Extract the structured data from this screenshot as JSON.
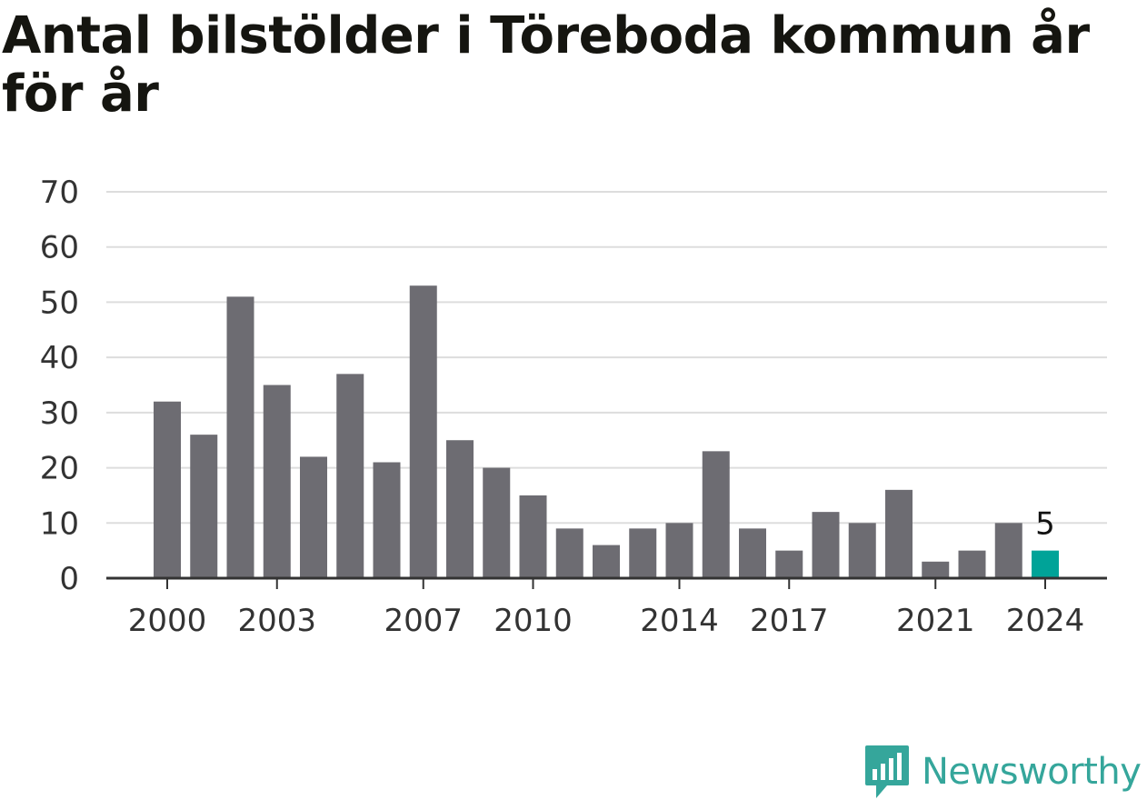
{
  "title": "Antal bilstölder i Töreboda kommun år för år",
  "brand": {
    "name": "Newsworthy",
    "icon": "newsworthy-logo-icon",
    "color": "#35a69b"
  },
  "colors": {
    "bar": "#6d6c72",
    "highlight": "#00a398",
    "grid": "#dddddd",
    "axis": "#333333",
    "text": "#333333"
  },
  "chart_data": {
    "type": "bar",
    "title": "Antal bilstölder i Töreboda kommun år för år",
    "xlabel": "",
    "ylabel": "",
    "categories": [
      "2000",
      "2001",
      "2002",
      "2003",
      "2004",
      "2005",
      "2006",
      "2007",
      "2008",
      "2009",
      "2010",
      "2011",
      "2012",
      "2013",
      "2014",
      "2015",
      "2016",
      "2017",
      "2018",
      "2019",
      "2020",
      "2021",
      "2022",
      "2023",
      "2024"
    ],
    "values": [
      32,
      26,
      51,
      35,
      22,
      37,
      21,
      53,
      25,
      20,
      15,
      9,
      6,
      9,
      10,
      23,
      9,
      5,
      12,
      10,
      16,
      3,
      5,
      10,
      5
    ],
    "x_tick_labels": [
      "2000",
      "2003",
      "2007",
      "2010",
      "2014",
      "2017",
      "2021",
      "2024"
    ],
    "y_ticks": [
      0,
      10,
      20,
      30,
      40,
      50,
      60,
      70
    ],
    "ylim": [
      0,
      70
    ],
    "grid": true,
    "legend": "none",
    "highlight": {
      "category": "2024",
      "label": "5"
    }
  }
}
